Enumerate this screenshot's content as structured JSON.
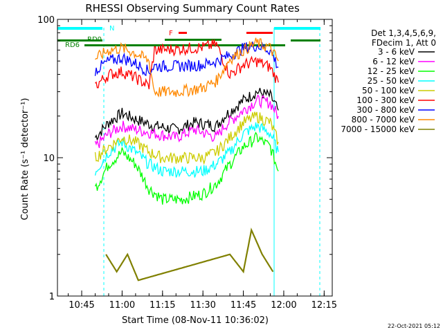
{
  "chart_data": {
    "type": "line",
    "title": "RHESSI Observing Summary Count Rates",
    "xlabel": "Start Time (08-Nov-11 10:36:02)",
    "ylabel": "Count Rate (s⁻¹ detector⁻¹)",
    "y_scale": "log",
    "ylim": [
      1,
      100
    ],
    "xlim": [
      "10:36",
      "12:18"
    ],
    "x_ticks": [
      "10:45",
      "11:00",
      "11:15",
      "11:30",
      "11:45",
      "12:00",
      "12:15"
    ],
    "y_ticks": [
      "1",
      "10",
      "100"
    ],
    "legend_header": [
      "Det 1,3,4,5,6,9,",
      "FDecim 1, Att 0"
    ],
    "legend_position": "right",
    "series": [
      {
        "name": "3 - 6 keV",
        "color": "#000000",
        "x": [
          "10:50",
          "10:55",
          "11:00",
          "11:05",
          "11:12",
          "11:20",
          "11:27",
          "11:35",
          "11:38",
          "11:45",
          "11:50",
          "11:55",
          "11:58"
        ],
        "y": [
          14,
          18,
          21,
          19,
          17,
          16,
          18,
          17,
          20,
          26,
          30,
          28,
          22
        ]
      },
      {
        "name": "6 - 12 keV",
        "color": "#ff00ff",
        "x": [
          "10:50",
          "10:55",
          "11:00",
          "11:05",
          "11:12",
          "11:20",
          "11:27",
          "11:35",
          "11:38",
          "11:45",
          "11:50",
          "11:55",
          "11:58"
        ],
        "y": [
          12,
          15,
          17,
          16,
          15,
          14,
          16,
          14,
          17,
          22,
          26,
          25,
          20
        ]
      },
      {
        "name": "12 - 25 keV",
        "color": "#00ff00",
        "x": [
          "10:50",
          "10:55",
          "11:00",
          "11:05",
          "11:10",
          "11:15",
          "11:22",
          "11:30",
          "11:35",
          "11:40",
          "11:45",
          "11:50",
          "11:55",
          "11:58"
        ],
        "y": [
          6,
          9,
          11,
          9,
          6,
          5,
          5,
          5.5,
          6.5,
          9,
          12,
          14,
          12,
          8
        ]
      },
      {
        "name": "25 - 50 keV",
        "color": "#00ffff",
        "x": [
          "10:50",
          "10:55",
          "11:00",
          "11:05",
          "11:10",
          "11:15",
          "11:22",
          "11:30",
          "11:35",
          "11:40",
          "11:45",
          "11:50",
          "11:55",
          "11:58"
        ],
        "y": [
          8,
          11,
          13,
          11,
          9,
          8,
          8,
          8,
          9,
          11,
          15,
          17,
          15,
          11
        ]
      },
      {
        "name": "50 - 100 keV",
        "color": "#cccc00",
        "x": [
          "10:50",
          "10:55",
          "11:00",
          "11:05",
          "11:10",
          "11:15",
          "11:22",
          "11:30",
          "11:35",
          "11:40",
          "11:45",
          "11:50",
          "11:55",
          "11:58"
        ],
        "y": [
          10,
          12,
          14,
          13,
          11,
          10,
          10,
          10,
          11,
          14,
          18,
          20,
          18,
          13
        ]
      },
      {
        "name": "100 - 300 keV",
        "color": "#ff0000",
        "x": [
          "10:50",
          "10:55",
          "11:00",
          "11:05",
          "11:10",
          "11:12",
          "11:20",
          "11:30",
          "11:35",
          "11:40",
          "11:45",
          "11:50",
          "11:55",
          "11:58"
        ],
        "y": [
          33,
          40,
          42,
          38,
          33,
          60,
          61,
          63,
          66,
          40,
          47,
          50,
          45,
          35
        ]
      },
      {
        "name": "300 - 800 keV",
        "color": "#0000ff",
        "x": [
          "10:50",
          "10:55",
          "11:00",
          "11:05",
          "11:10",
          "11:12",
          "11:20",
          "11:30",
          "11:35",
          "11:40",
          "11:45",
          "11:50",
          "11:55",
          "11:58"
        ],
        "y": [
          43,
          50,
          53,
          48,
          42,
          46,
          46,
          47,
          50,
          55,
          62,
          65,
          60,
          45
        ]
      },
      {
        "name": "800 - 7000 keV",
        "color": "#ff8800",
        "x": [
          "10:50",
          "10:55",
          "11:00",
          "11:05",
          "11:10",
          "11:12",
          "11:20",
          "11:30",
          "11:35",
          "11:40",
          "11:45",
          "11:50",
          "11:55",
          "11:58"
        ],
        "y": [
          52,
          60,
          62,
          57,
          50,
          30,
          30,
          32,
          36,
          52,
          60,
          68,
          62,
          50
        ]
      },
      {
        "name": "7000 - 15000 keV",
        "color": "#808000",
        "x": [
          "10:54",
          "10:58",
          "11:02",
          "11:06",
          "11:40",
          "11:45",
          "11:48",
          "11:52",
          "11:56"
        ],
        "y": [
          2,
          1.5,
          2,
          1.3,
          2,
          1.5,
          3,
          2,
          1.5
        ]
      }
    ],
    "flags": [
      {
        "label": "N",
        "color": "#00ffff"
      },
      {
        "label": "RD0",
        "color": "#008000"
      },
      {
        "label": "RD6",
        "color": "#008000"
      },
      {
        "label": "F",
        "color": "#ff0000"
      }
    ],
    "footer_date": "22-Oct-2021 05:12"
  }
}
